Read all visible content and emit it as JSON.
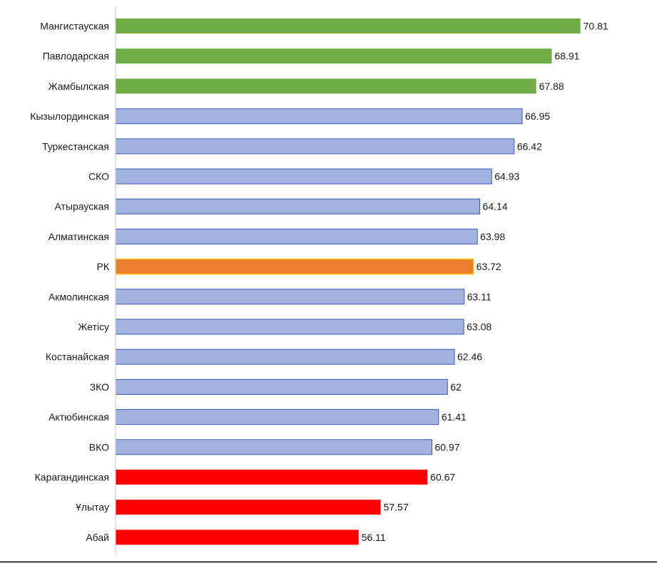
{
  "chart_data": {
    "type": "bar",
    "orientation": "horizontal",
    "categories": [
      "Мангистауская",
      "Павлодарская",
      "Жамбылская",
      "Кызылординская",
      "Туркестанская",
      "СКО",
      "Атырауская",
      "Алматинская",
      "РК",
      "Акмолинская",
      "Жетісу",
      "Костанайская",
      "ЗКО",
      "Актюбинская",
      "ВКО",
      "Карагандинская",
      "Ұлытау",
      "Абай"
    ],
    "values": [
      70.81,
      68.91,
      67.88,
      66.95,
      66.42,
      64.93,
      64.14,
      63.98,
      63.72,
      63.11,
      63.08,
      62.46,
      62,
      61.41,
      60.97,
      60.67,
      57.57,
      56.11
    ],
    "value_labels": [
      "70.81",
      "68.91",
      "67.88",
      "66.95",
      "66.42",
      "64.93",
      "64.14",
      "63.98",
      "63.72",
      "63.11",
      "63.08",
      "62.46",
      "62",
      "61.41",
      "60.97",
      "60.67",
      "57.57",
      "56.11"
    ],
    "bar_groups": [
      "top",
      "top",
      "top",
      "mid",
      "mid",
      "mid",
      "mid",
      "mid",
      "total",
      "mid",
      "mid",
      "mid",
      "mid",
      "mid",
      "mid",
      "bottom",
      "bottom",
      "bottom"
    ],
    "colors": {
      "top": "#70ad47",
      "mid": "#a2b3e0",
      "total": "#ed7d31",
      "bottom": "#ff0000",
      "mid_border": "#3a5bb0",
      "total_border": "#ffc000",
      "axis": "#c8c8c8"
    },
    "title": "",
    "xlabel": "",
    "ylabel": "",
    "xlim": [
      40,
      72
    ],
    "grid": false,
    "legend": "none"
  }
}
